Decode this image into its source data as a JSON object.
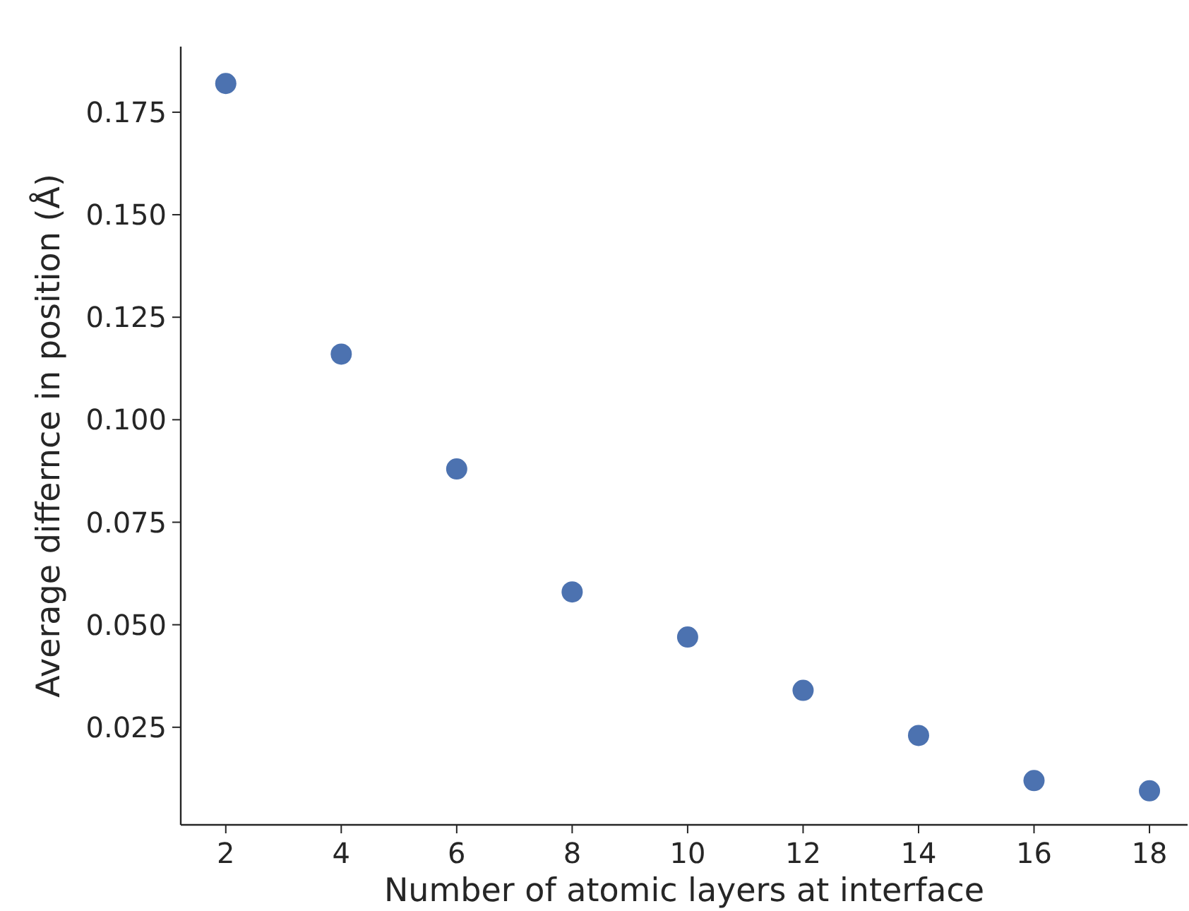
{
  "chart_data": {
    "type": "scatter",
    "xlabel": "Number of atomic layers at interface",
    "ylabel": "Average differnce in position (Å)",
    "x": [
      2,
      4,
      6,
      8,
      10,
      12,
      14,
      16,
      18
    ],
    "series": [
      {
        "color": "#4c72b0",
        "values": [
          0.182,
          0.116,
          0.088,
          0.058,
          0.047,
          0.034,
          0.023,
          0.012,
          0.0095
        ]
      }
    ],
    "xlim": [
      1.22,
      18.66
    ],
    "ylim": [
      0.0012,
      0.191
    ],
    "xticks": [
      2,
      4,
      6,
      8,
      10,
      12,
      14,
      16,
      18
    ],
    "yticks": [
      {
        "value": 0.025,
        "label": "0.025"
      },
      {
        "value": 0.05,
        "label": "0.050"
      },
      {
        "value": 0.075,
        "label": "0.075"
      },
      {
        "value": 0.1,
        "label": "0.100"
      },
      {
        "value": 0.125,
        "label": "0.125"
      },
      {
        "value": 0.15,
        "label": "0.150"
      },
      {
        "value": 0.175,
        "label": "0.175"
      }
    ],
    "grid": false,
    "marker": "circle"
  }
}
